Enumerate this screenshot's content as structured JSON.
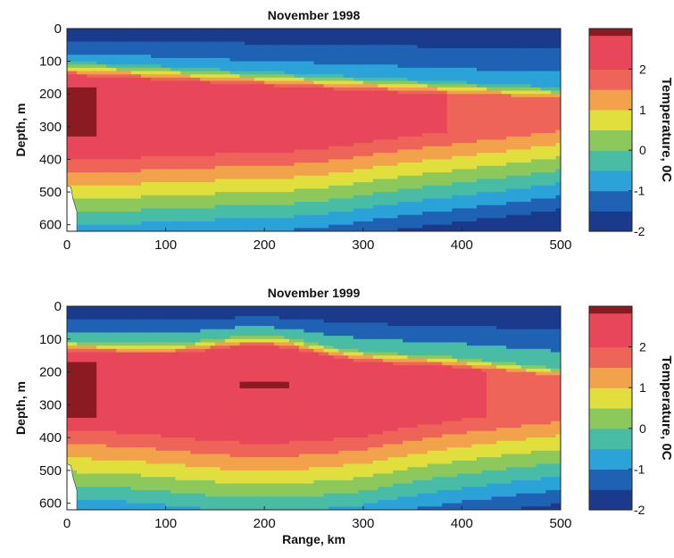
{
  "figure": {
    "shared_xlabel": "Range, km",
    "colorbar_label": "Temperature,  0C"
  },
  "chart_data": [
    {
      "type": "heatmap",
      "title": "November 1998",
      "xlabel": "",
      "ylabel": "Depth, m",
      "xlim": [
        0,
        500
      ],
      "ylim": [
        0,
        620
      ],
      "y_inverted": true,
      "xticks": [
        0,
        100,
        200,
        300,
        400,
        500
      ],
      "yticks": [
        0,
        100,
        200,
        300,
        400,
        500,
        600
      ],
      "colorbar": {
        "label": "Temperature,  0C",
        "range": [
          -2,
          3
        ],
        "ticks": [
          -2,
          -1,
          0,
          1,
          2
        ]
      },
      "colormap": [
        "#1b3a8c",
        "#1f62b4",
        "#2ba3d8",
        "#49bca6",
        "#8dc85c",
        "#e1df3e",
        "#f3a24c",
        "#ee6459",
        "#e8475a",
        "#8b1a22"
      ],
      "features": [
        {
          "name": "cold surface layer",
          "x_range": [
            0,
            500
          ],
          "depth_range": [
            0,
            100
          ],
          "temp_range": [
            -2,
            -1
          ]
        },
        {
          "name": "warm core",
          "x_range": [
            0,
            320
          ],
          "depth_range": [
            150,
            340
          ],
          "temp_range": [
            2,
            2.5
          ]
        },
        {
          "name": "shelf maximum",
          "x": 10,
          "depth_range": [
            180,
            320
          ],
          "temp": 2.9
        },
        {
          "name": "deep cooling",
          "x_range": [
            300,
            500
          ],
          "depth_range": [
            500,
            620
          ],
          "temp_range": [
            0,
            0.5
          ]
        }
      ]
    },
    {
      "type": "heatmap",
      "title": "November 1999",
      "xlabel": "Range, km",
      "ylabel": "Depth, m",
      "xlim": [
        0,
        500
      ],
      "ylim": [
        0,
        620
      ],
      "y_inverted": true,
      "xticks": [
        0,
        100,
        200,
        300,
        400,
        500
      ],
      "yticks": [
        0,
        100,
        200,
        300,
        400,
        500,
        600
      ],
      "colorbar": {
        "label": "Temperature,  0C",
        "range": [
          -2,
          3
        ],
        "ticks": [
          -2,
          -1,
          0,
          1,
          2
        ]
      },
      "colormap": [
        "#1b3a8c",
        "#1f62b4",
        "#2ba3d8",
        "#49bca6",
        "#8dc85c",
        "#e1df3e",
        "#f3a24c",
        "#ee6459",
        "#e8475a",
        "#8b1a22"
      ],
      "features": [
        {
          "name": "cold surface layer",
          "x_range": [
            0,
            500
          ],
          "depth_range": [
            0,
            100
          ],
          "temp_range": [
            -2,
            -1
          ]
        },
        {
          "name": "doming of warm layer",
          "x": 200,
          "depth": 100
        },
        {
          "name": "warm core",
          "x_range": [
            0,
            400
          ],
          "depth_range": [
            150,
            380
          ],
          "temp_range": [
            2,
            2.5
          ]
        },
        {
          "name": "core maximum",
          "x": 200,
          "depth": 240,
          "temp": 2.8
        },
        {
          "name": "shelf maximum",
          "x": 10,
          "depth_range": [
            180,
            340
          ],
          "temp": 2.9
        }
      ]
    }
  ]
}
